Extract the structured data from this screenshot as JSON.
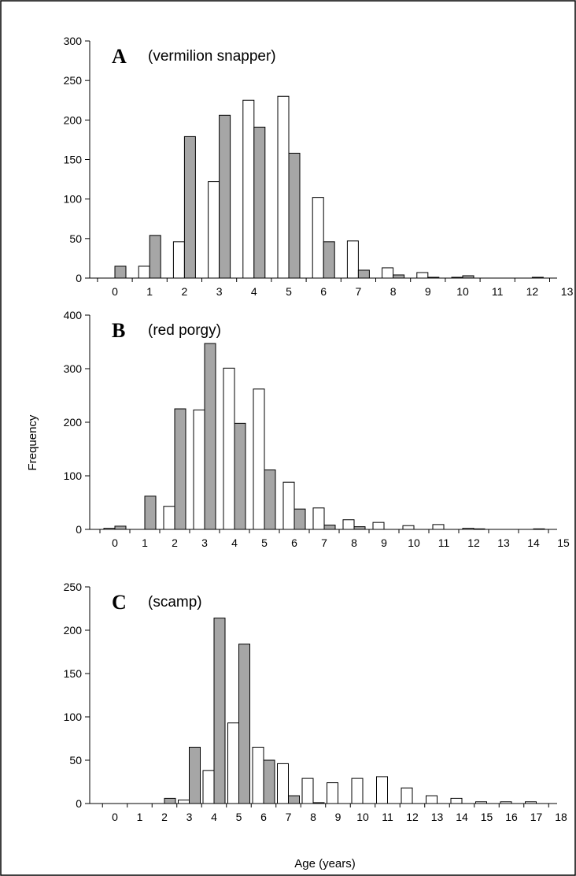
{
  "chart_data": [
    {
      "type": "bar",
      "panel_label": "A",
      "title": "(vermilion snapper)",
      "ylabel": "Frequency",
      "xlabel": "Age (years)",
      "ylim": [
        0,
        300
      ],
      "yticks": [
        0,
        50,
        100,
        150,
        200,
        250,
        300
      ],
      "categories": [
        "0",
        "1",
        "2",
        "3",
        "4",
        "5",
        "6",
        "7",
        "8",
        "9",
        "10",
        "11",
        "12",
        "13"
      ],
      "series": [
        {
          "color": "#ffffff",
          "values": [
            0,
            15,
            46,
            122,
            225,
            230,
            102,
            47,
            13,
            7,
            1,
            0,
            0,
            0
          ]
        },
        {
          "color": "#a6a6a6",
          "values": [
            15,
            54,
            179,
            206,
            191,
            158,
            46,
            10,
            4,
            1,
            3,
            0,
            1,
            0
          ]
        }
      ]
    },
    {
      "type": "bar",
      "panel_label": "B",
      "title": "(red porgy)",
      "ylabel": "Frequency",
      "xlabel": "Age (years)",
      "ylim": [
        0,
        400
      ],
      "yticks": [
        0,
        100,
        200,
        300,
        400
      ],
      "categories": [
        "0",
        "1",
        "2",
        "3",
        "4",
        "5",
        "6",
        "7",
        "8",
        "9",
        "10",
        "11",
        "12",
        "13",
        "14",
        "15"
      ],
      "series": [
        {
          "color": "#ffffff",
          "values": [
            2,
            0,
            43,
            223,
            301,
            262,
            88,
            40,
            18,
            13,
            7,
            9,
            2,
            0,
            0,
            0
          ]
        },
        {
          "color": "#a6a6a6",
          "values": [
            6,
            62,
            225,
            347,
            198,
            111,
            38,
            8,
            5,
            0,
            0,
            0,
            1,
            0,
            1,
            0
          ]
        }
      ]
    },
    {
      "type": "bar",
      "panel_label": "C",
      "title": "(scamp)",
      "ylabel": "Frequency",
      "xlabel": "Age (years)",
      "ylim": [
        0,
        250
      ],
      "yticks": [
        0,
        50,
        100,
        150,
        200,
        250
      ],
      "categories": [
        "0",
        "1",
        "2",
        "3",
        "4",
        "5",
        "6",
        "7",
        "8",
        "9",
        "10",
        "11",
        "12",
        "13",
        "14",
        "15",
        "16",
        "17",
        "18"
      ],
      "series": [
        {
          "color": "#ffffff",
          "values": [
            0,
            0,
            0,
            4,
            38,
            93,
            65,
            46,
            29,
            24,
            29,
            31,
            18,
            9,
            6,
            2,
            2,
            2,
            0
          ]
        },
        {
          "color": "#a6a6a6",
          "values": [
            0,
            0,
            6,
            65,
            214,
            184,
            50,
            9,
            1,
            0,
            0,
            0,
            0,
            0,
            0,
            0,
            0,
            0,
            0
          ]
        }
      ]
    }
  ],
  "shared": {
    "ylabel": "Frequency",
    "xlabel": "Age (years)"
  }
}
